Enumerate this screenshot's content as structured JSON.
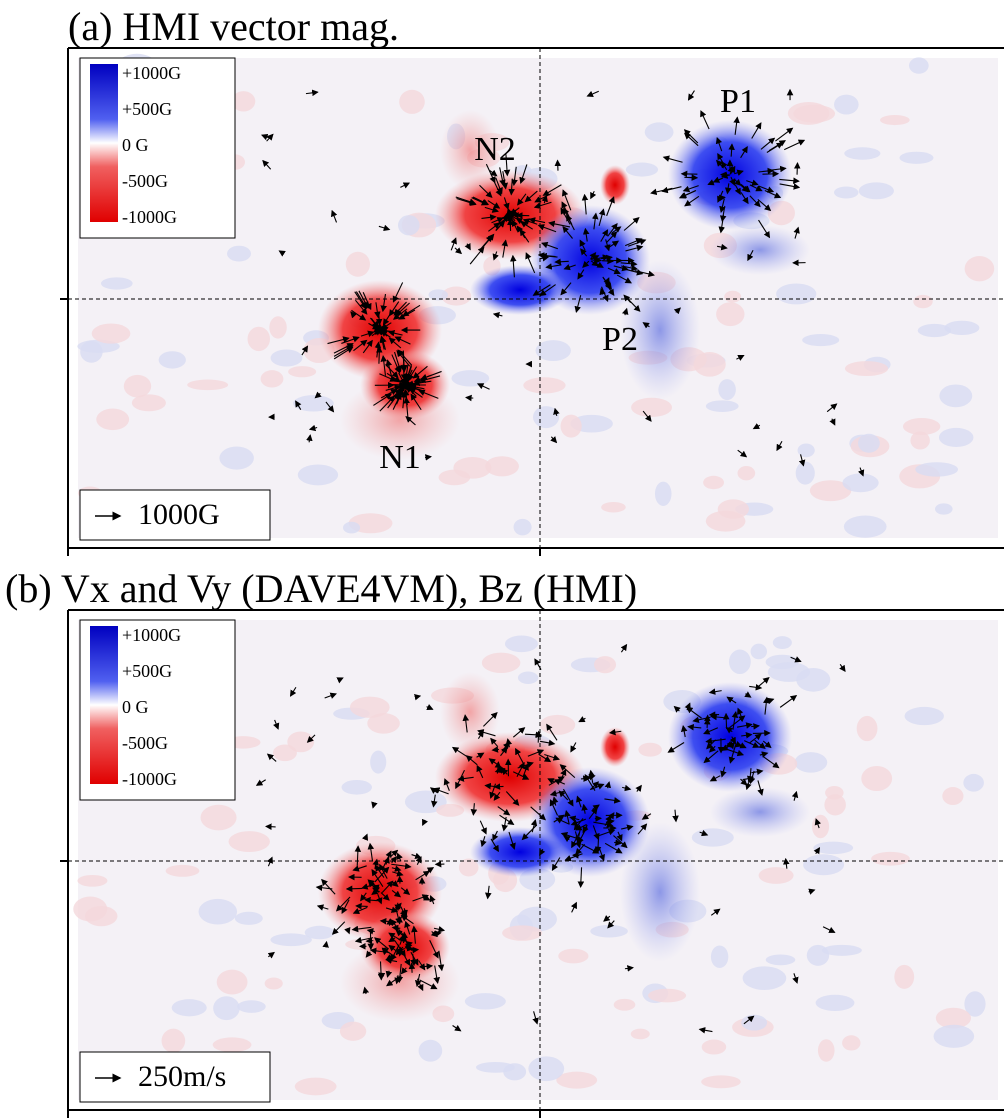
{
  "panels": [
    {
      "title": "(a) HMI vector mag.",
      "colorbar": [
        "+1000G",
        "+500G",
        "0 G",
        "-500G",
        "-1000G"
      ],
      "labels": [
        "P1",
        "N2",
        "P2",
        "N1"
      ],
      "scale": "1000G"
    },
    {
      "title": "(b) Vx and Vy (DAVE4VM), Bz (HMI)",
      "colorbar": [
        "+1000G",
        "+500G",
        "0 G",
        "-500G",
        "-1000G"
      ],
      "scale": "250m/s"
    }
  ]
}
